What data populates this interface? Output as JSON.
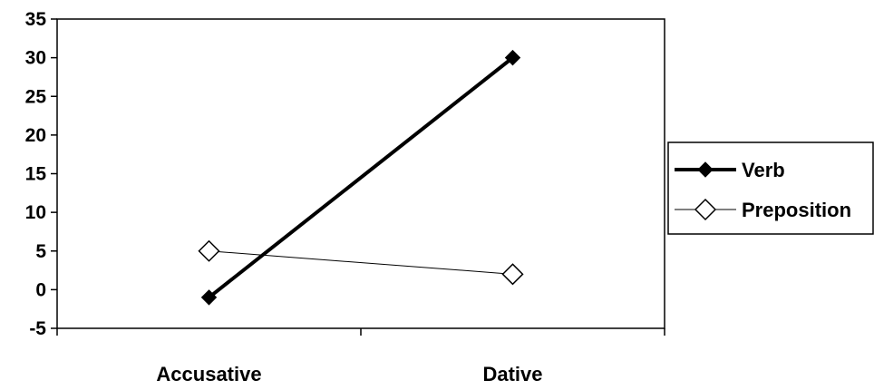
{
  "chart_data": {
    "type": "line",
    "title": "",
    "xlabel": "",
    "ylabel": "",
    "categories": [
      "Accusative",
      "Dative"
    ],
    "ylim": [
      -5,
      35
    ],
    "yticks": [
      35,
      30,
      25,
      20,
      15,
      10,
      5,
      0,
      -5
    ],
    "grid": false,
    "legend_position": "right",
    "series": [
      {
        "name": "Verb",
        "values": [
          -1,
          30
        ],
        "color": "#000000",
        "marker": "filled-diamond",
        "line": "thick"
      },
      {
        "name": "Preposition",
        "values": [
          5,
          2
        ],
        "color": "#000000",
        "marker": "open-diamond",
        "line": "thin"
      }
    ]
  }
}
